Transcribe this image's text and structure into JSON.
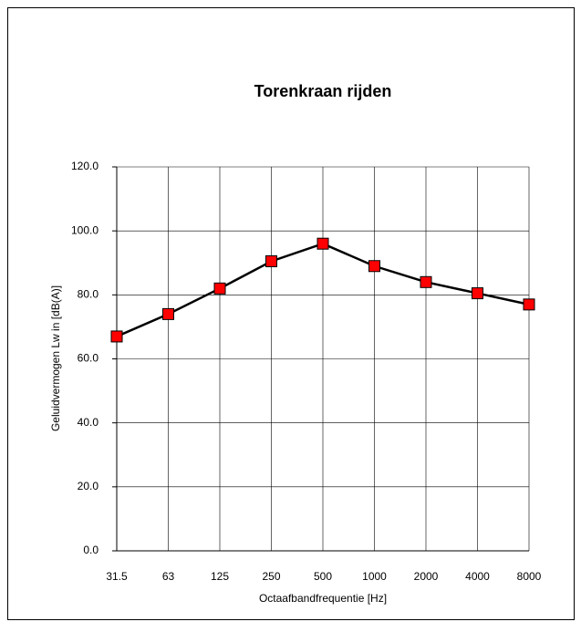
{
  "chart_data": {
    "type": "line",
    "title": "Torenkraan rijden",
    "x_label": "Octaafbandfrequentie [Hz]",
    "y_label": "Geluidvermogen Lw in  [dB(A)]",
    "categories": [
      "31.5",
      "63",
      "125",
      "250",
      "500",
      "1000",
      "2000",
      "4000",
      "8000"
    ],
    "series": [
      {
        "name": "Torenkraan rijden",
        "color": "#ff0000",
        "line_color": "#000000",
        "values": [
          67,
          74,
          82,
          90.5,
          96,
          89,
          84,
          80.5,
          77
        ]
      }
    ],
    "ylim": [
      0,
      120
    ],
    "yticks": [
      {
        "value": 0,
        "label": "0.0"
      },
      {
        "value": 20,
        "label": "20.0"
      },
      {
        "value": 40,
        "label": "40.0"
      },
      {
        "value": 60,
        "label": "60.0"
      },
      {
        "value": 80,
        "label": "80.0"
      },
      {
        "value": 100,
        "label": "100.0"
      },
      {
        "value": 120,
        "label": "120.0"
      }
    ],
    "grid": true
  }
}
